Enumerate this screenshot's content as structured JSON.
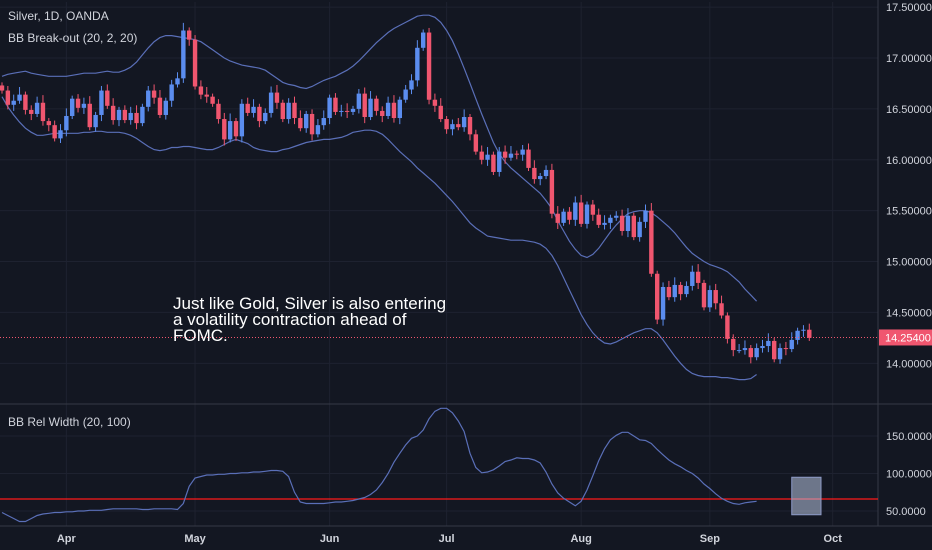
{
  "header": {
    "symbol_line": "Silver, 1D, OANDA",
    "indicator_line": "BB Break-out (20, 2, 20)",
    "sub_indicator_line": "BB Rel Width (20, 100)"
  },
  "annotation": {
    "lines": [
      "Just like Gold, Silver is also entering",
      "a volatility contraction ahead of",
      "FOMC."
    ]
  },
  "colors": {
    "background": "#131722",
    "grid": "#1e2230",
    "up_candle": "#5b8def",
    "down_candle": "#f0566f",
    "band_line": "#5a6fb8",
    "price_line": "#f0566f",
    "threshold_line": "#ff1a1a",
    "box_fill": "#b8c4e0",
    "axis_text": "#d1d4dc"
  },
  "chart_data": [
    {
      "type": "candlestick",
      "title": "Silver, 1D, OANDA",
      "indicator": "BB Break-out (20, 2, 20)",
      "y_ticks": [
        "17.50000",
        "17.00000",
        "16.50000",
        "16.00000",
        "15.50000",
        "15.00000",
        "14.50000",
        "14.00000"
      ],
      "y_tick_values": [
        17.5,
        17.0,
        16.5,
        16.0,
        15.5,
        15.0,
        14.5,
        14.0
      ],
      "ylim": [
        13.62,
        17.55
      ],
      "x_ticks": [
        "Apr",
        "May",
        "Jun",
        "Jul",
        "Aug",
        "Sep",
        "Oct"
      ],
      "x_tick_dates": [
        "2019-04-01",
        "2019-05-01",
        "2019-06-03",
        "2019-07-01",
        "2019-08-01",
        "2019-09-02",
        "2019-10-01"
      ],
      "last_price_label": "14.25400",
      "last_price": 14.254,
      "candle_closes": [
        16.68,
        16.54,
        16.58,
        16.64,
        16.49,
        16.45,
        16.56,
        16.38,
        16.34,
        16.21,
        16.29,
        16.43,
        16.6,
        16.51,
        16.55,
        16.32,
        16.44,
        16.68,
        16.53,
        16.39,
        16.49,
        16.39,
        16.46,
        16.36,
        16.52,
        16.68,
        16.61,
        16.44,
        16.58,
        16.74,
        16.8,
        17.27,
        17.18,
        16.72,
        16.64,
        16.62,
        16.55,
        16.4,
        16.2,
        16.38,
        16.23,
        16.55,
        16.46,
        16.52,
        16.38,
        16.46,
        16.66,
        16.56,
        16.4,
        16.56,
        16.41,
        16.31,
        16.45,
        16.25,
        16.34,
        16.41,
        16.61,
        16.47,
        16.48,
        16.47,
        16.5,
        16.65,
        16.42,
        16.6,
        16.48,
        16.43,
        16.56,
        16.41,
        16.59,
        16.69,
        16.78,
        17.1,
        17.25,
        16.59,
        16.53,
        16.4,
        16.3,
        16.35,
        16.32,
        16.42,
        16.25,
        16.08,
        16.0,
        16.05,
        15.88,
        16.08,
        16.02,
        16.06,
        16.05,
        16.1,
        15.92,
        15.81,
        15.84,
        15.9,
        15.47,
        15.38,
        15.49,
        15.41,
        15.58,
        15.37,
        15.56,
        15.46,
        15.36,
        15.38,
        15.43,
        15.45,
        15.3,
        15.45,
        15.24,
        15.39,
        15.5,
        14.88,
        14.43,
        14.75,
        14.65,
        14.77,
        14.68,
        14.76,
        14.9,
        14.79,
        14.55,
        14.72,
        14.59,
        14.47,
        14.24,
        14.13,
        14.13,
        14.15,
        14.06,
        14.15,
        14.17,
        14.22,
        14.04,
        14.15,
        14.14,
        14.23,
        14.32,
        14.33,
        14.25
      ],
      "upper_band": [
        16.82,
        16.84,
        16.85,
        16.86,
        16.87,
        16.85,
        16.84,
        16.83,
        16.82,
        16.82,
        16.82,
        16.82,
        16.83,
        16.84,
        16.85,
        16.85,
        16.85,
        16.86,
        16.87,
        16.86,
        16.86,
        16.88,
        16.91,
        16.96,
        17.03,
        17.1,
        17.16,
        17.2,
        17.22,
        17.22,
        17.21,
        17.2,
        17.19,
        17.18,
        17.16,
        17.12,
        17.08,
        17.04,
        17.0,
        16.97,
        16.95,
        16.93,
        16.92,
        16.91,
        16.9,
        16.88,
        16.84,
        16.8,
        16.76,
        16.74,
        16.73,
        16.71,
        16.7,
        16.72,
        16.75,
        16.78,
        16.8,
        16.82,
        16.85,
        16.88,
        16.92,
        16.97,
        17.03,
        17.09,
        17.15,
        17.2,
        17.25,
        17.29,
        17.32,
        17.35,
        17.38,
        17.41,
        17.42,
        17.42,
        17.4,
        17.35,
        17.27,
        17.17,
        17.04,
        16.9,
        16.75,
        16.6,
        16.45,
        16.31,
        16.17,
        16.06,
        15.98,
        15.92,
        15.87,
        15.82,
        15.77,
        15.72,
        15.67,
        15.6,
        15.52,
        15.4,
        15.3,
        15.2,
        15.12,
        15.06,
        15.04,
        15.07,
        15.13,
        15.21,
        15.29,
        15.36,
        15.42,
        15.47,
        15.49,
        15.5,
        15.5,
        15.48,
        15.44,
        15.39,
        15.34,
        15.28,
        15.21,
        15.14,
        15.08,
        15.04,
        15.0,
        14.97,
        14.95,
        14.93,
        14.9,
        14.85,
        14.8,
        14.73,
        14.67,
        14.61
      ],
      "lower_band": [
        16.62,
        16.52,
        16.44,
        16.37,
        16.31,
        16.27,
        16.24,
        16.24,
        16.25,
        16.26,
        16.26,
        16.26,
        16.26,
        16.26,
        16.27,
        16.27,
        16.28,
        16.28,
        16.27,
        16.27,
        16.27,
        16.26,
        16.24,
        16.21,
        16.17,
        16.13,
        16.1,
        16.09,
        16.1,
        16.12,
        16.12,
        16.13,
        16.13,
        16.12,
        16.11,
        16.1,
        16.1,
        16.12,
        16.15,
        16.18,
        16.2,
        16.18,
        16.16,
        16.12,
        16.1,
        16.09,
        16.08,
        16.08,
        16.1,
        16.11,
        16.13,
        16.15,
        16.17,
        16.18,
        16.19,
        16.2,
        16.2,
        16.21,
        16.22,
        16.24,
        16.27,
        16.28,
        16.29,
        16.29,
        16.28,
        16.25,
        16.2,
        16.14,
        16.08,
        16.03,
        15.98,
        15.92,
        15.87,
        15.82,
        15.77,
        15.71,
        15.65,
        15.59,
        15.52,
        15.45,
        15.38,
        15.33,
        15.29,
        15.25,
        15.24,
        15.23,
        15.22,
        15.21,
        15.21,
        15.21,
        15.2,
        15.19,
        15.17,
        15.13,
        15.06,
        14.96,
        14.84,
        14.72,
        14.6,
        14.48,
        14.38,
        14.3,
        14.24,
        14.2,
        14.19,
        14.21,
        14.24,
        14.27,
        14.3,
        14.32,
        14.34,
        14.34,
        14.3,
        14.23,
        14.15,
        14.07,
        14.0,
        13.94,
        13.9,
        13.88,
        13.87,
        13.87,
        13.87,
        13.86,
        13.86,
        13.85,
        13.84,
        13.84,
        13.85,
        13.89
      ]
    },
    {
      "type": "line",
      "title": "BB Rel Width (20, 100)",
      "y_ticks": [
        "150.0000",
        "100.0000",
        "50.0000"
      ],
      "y_tick_values": [
        150,
        100,
        50
      ],
      "ylim": [
        30,
        190
      ],
      "threshold": 66,
      "highlight_box": {
        "x_from": "2019-09-20",
        "x_to": "2019-09-27",
        "y_from": 45,
        "y_to": 95
      },
      "values": [
        48,
        44,
        40,
        36,
        36,
        40,
        44,
        46,
        47,
        48,
        48,
        49,
        49,
        50,
        50,
        51,
        51,
        51,
        52,
        53,
        53,
        53,
        53,
        53,
        52,
        52,
        53,
        53,
        53,
        53,
        52,
        60,
        83,
        94,
        96,
        98,
        98,
        99,
        99,
        100,
        100,
        101,
        101,
        102,
        102,
        103,
        104,
        104,
        103,
        96,
        75,
        62,
        60,
        60,
        60,
        60,
        61,
        62,
        62,
        63,
        64,
        66,
        68,
        72,
        78,
        88,
        100,
        115,
        127,
        138,
        147,
        150,
        158,
        173,
        183,
        187,
        187,
        181,
        170,
        156,
        127,
        108,
        101,
        102,
        105,
        110,
        116,
        118,
        121,
        120,
        120,
        118,
        114,
        102,
        86,
        74,
        67,
        62,
        57,
        63,
        78,
        97,
        117,
        133,
        145,
        151,
        155,
        155,
        150,
        145,
        144,
        140,
        132,
        125,
        118,
        113,
        109,
        104,
        100,
        94,
        86,
        80,
        73,
        67,
        63,
        60,
        59,
        61,
        62,
        63
      ]
    }
  ]
}
